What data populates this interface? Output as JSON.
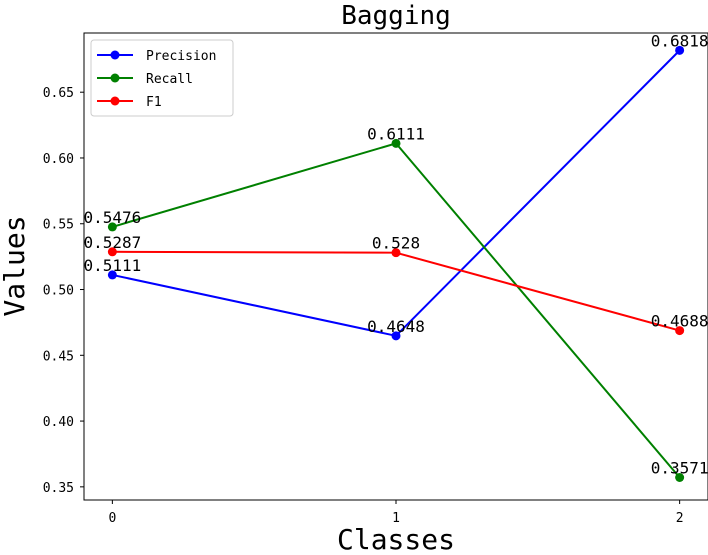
{
  "chart_data": {
    "type": "line",
    "title": "Bagging",
    "xlabel": "Classes",
    "ylabel": "Values",
    "x": [
      0,
      1,
      2
    ],
    "x_tick_labels": [
      "0",
      "1",
      "2"
    ],
    "xlim": [
      -0.1,
      2.1
    ],
    "ylim": [
      0.34,
      0.695
    ],
    "y_ticks": [
      0.35,
      0.4,
      0.45,
      0.5,
      0.55,
      0.6,
      0.65
    ],
    "y_tick_labels": [
      "0.35",
      "0.40",
      "0.45",
      "0.50",
      "0.55",
      "0.60",
      "0.65"
    ],
    "grid": false,
    "legend_position": "top-left",
    "series": [
      {
        "name": "Precision",
        "color": "#0000ff",
        "values": [
          0.5111,
          0.4648,
          0.6818
        ],
        "labels": [
          "0.5111",
          "0.4648",
          "0.6818"
        ]
      },
      {
        "name": "Recall",
        "color": "#008000",
        "values": [
          0.5476,
          0.6111,
          0.3571
        ],
        "labels": [
          "0.5476",
          "0.6111",
          "0.3571"
        ]
      },
      {
        "name": "F1",
        "color": "#ff0000",
        "values": [
          0.5287,
          0.528,
          0.4688
        ],
        "labels": [
          "0.5287",
          "0.528",
          "0.4688"
        ]
      }
    ]
  }
}
